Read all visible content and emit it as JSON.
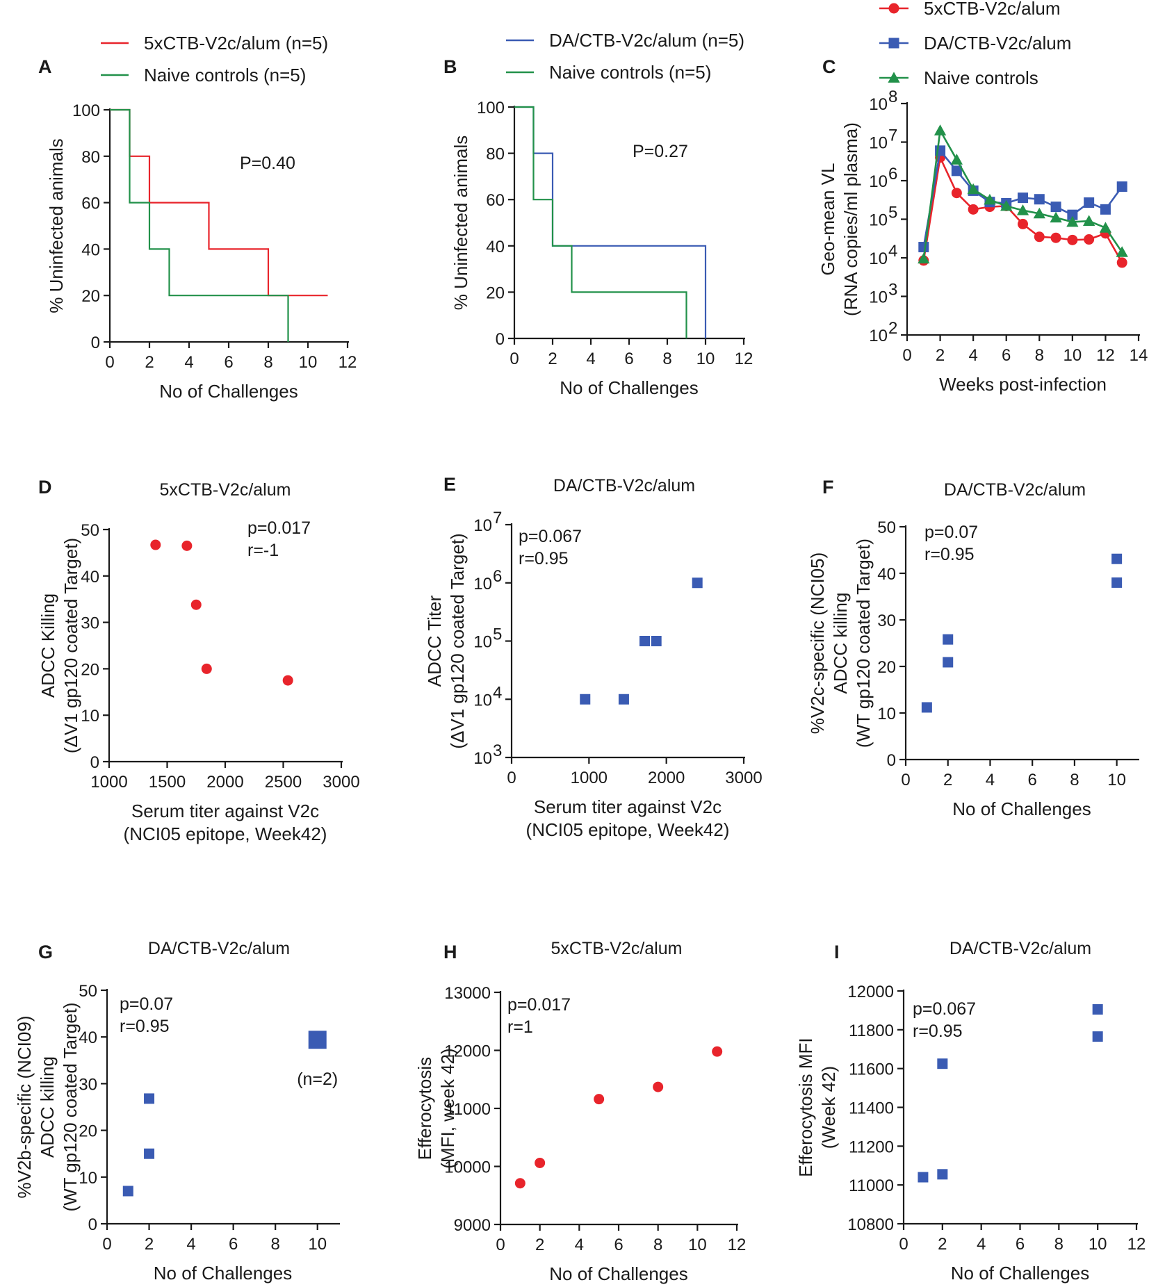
{
  "colors": {
    "red": "#e8242b",
    "blue": "#3a5bb3",
    "green": "#22914a",
    "axis": "#1a1a1a"
  },
  "chart_data": [
    {
      "id": "A",
      "type": "line",
      "style": "step",
      "title": "",
      "xlabel": "No of Challenges",
      "ylabel": "% Uninfected animals",
      "xlim": [
        0,
        12
      ],
      "ylim": [
        0,
        100
      ],
      "xticks": [
        0,
        2,
        4,
        6,
        8,
        10,
        12
      ],
      "yticks": [
        0,
        20,
        40,
        60,
        80,
        100
      ],
      "xtick_labels": [
        "0",
        "2",
        "4",
        "6",
        "8",
        "10",
        "12"
      ],
      "ytick_labels": [
        "0",
        "20",
        "40",
        "60",
        "80",
        "100"
      ],
      "annotation": "P=0.40",
      "legend": [
        "5xCTB-V2c/alum (n=5)",
        "Naive controls (n=5)"
      ],
      "series": [
        {
          "name": "5xCTB-V2c/alum (n=5)",
          "color": "red",
          "x": [
            0,
            1,
            1,
            2,
            2,
            5,
            5,
            8,
            8,
            11
          ],
          "y": [
            100,
            100,
            80,
            80,
            60,
            60,
            40,
            40,
            20,
            20
          ]
        },
        {
          "name": "Naive controls (n=5)",
          "color": "green",
          "x": [
            0,
            1,
            1,
            2,
            2,
            3,
            3,
            9,
            9
          ],
          "y": [
            100,
            100,
            60,
            60,
            40,
            40,
            20,
            20,
            0
          ]
        }
      ]
    },
    {
      "id": "B",
      "type": "line",
      "style": "step",
      "title": "",
      "xlabel": "No of Challenges",
      "ylabel": "% Uninfected animals",
      "xlim": [
        0,
        12
      ],
      "ylim": [
        0,
        100
      ],
      "xticks": [
        0,
        2,
        4,
        6,
        8,
        10,
        12
      ],
      "yticks": [
        0,
        20,
        40,
        60,
        80,
        100
      ],
      "xtick_labels": [
        "0",
        "2",
        "4",
        "6",
        "8",
        "10",
        "12"
      ],
      "ytick_labels": [
        "0",
        "20",
        "40",
        "60",
        "80",
        "100"
      ],
      "annotation": "P=0.27",
      "legend": [
        "DA/CTB-V2c/alum (n=5)",
        "Naive controls (n=5)"
      ],
      "series": [
        {
          "name": "DA/CTB-V2c/alum (n=5)",
          "color": "blue",
          "x": [
            0,
            1,
            1,
            2,
            2,
            10,
            10
          ],
          "y": [
            100,
            100,
            80,
            80,
            40,
            40,
            0
          ]
        },
        {
          "name": "Naive controls (n=5)",
          "color": "green",
          "x": [
            0,
            1,
            1,
            2,
            2,
            3,
            3,
            9,
            9
          ],
          "y": [
            100,
            100,
            60,
            60,
            40,
            40,
            20,
            20,
            0
          ]
        }
      ]
    },
    {
      "id": "C",
      "type": "line",
      "yscale": "log",
      "title": "",
      "xlabel": "Weeks post-infection",
      "ylabel": [
        "Geo-mean VL",
        "(RNA copies/ml plasma)"
      ],
      "xlim": [
        0,
        14
      ],
      "ylim": [
        100,
        100000000
      ],
      "xticks": [
        0,
        2,
        4,
        6,
        8,
        10,
        12,
        14
      ],
      "yticks": [
        100,
        1000,
        10000,
        100000,
        1000000,
        10000000,
        100000000
      ],
      "xtick_labels": [
        "0",
        "2",
        "4",
        "6",
        "8",
        "10",
        "12",
        "14"
      ],
      "ytick_labels": [
        "10",
        "10",
        "10",
        "10",
        "10",
        "10",
        "10"
      ],
      "ytick_exponents": [
        "2",
        "3",
        "4",
        "5",
        "6",
        "7",
        "8"
      ],
      "legend": [
        "5xCTB-V2c/alum",
        "DA/CTB-V2c/alum",
        "Naive controls"
      ],
      "series": [
        {
          "name": "5xCTB-V2c/alum",
          "color": "red",
          "marker": "circle",
          "x": [
            1,
            2,
            3,
            4,
            5,
            6,
            7,
            8,
            9,
            10,
            11,
            12,
            13
          ],
          "y": [
            8500,
            4000000,
            480000,
            180000,
            210000,
            220000,
            75000,
            35000,
            33000,
            29000,
            30000,
            43000,
            7500
          ]
        },
        {
          "name": "DA/CTB-V2c/alum",
          "color": "blue",
          "marker": "square",
          "x": [
            1,
            2,
            3,
            4,
            5,
            6,
            7,
            8,
            9,
            10,
            11,
            12,
            13
          ],
          "y": [
            19000,
            6000000,
            1800000,
            550000,
            280000,
            260000,
            360000,
            330000,
            210000,
            130000,
            270000,
            180000,
            700000
          ]
        },
        {
          "name": "Naive controls",
          "color": "green",
          "marker": "triangle",
          "x": [
            1,
            2,
            3,
            4,
            5,
            6,
            7,
            8,
            9,
            10,
            11,
            12,
            13
          ],
          "y": [
            9500,
            20000000,
            3500000,
            600000,
            320000,
            220000,
            170000,
            140000,
            110000,
            85000,
            90000,
            60000,
            14000
          ]
        }
      ]
    },
    {
      "id": "D",
      "type": "scatter",
      "title": "5xCTB-V2c/alum",
      "xlabel": [
        "Serum titer against V2c",
        "(NCI05 epitope, Week42)"
      ],
      "ylabel": [
        "ADCC Killing",
        "(ΔV1 gp120 coated Target)"
      ],
      "xlim": [
        1000,
        3000
      ],
      "ylim": [
        0,
        50
      ],
      "xticks": [
        1000,
        1500,
        2000,
        2500,
        3000
      ],
      "yticks": [
        0,
        10,
        20,
        30,
        40,
        50
      ],
      "xtick_labels": [
        "1000",
        "1500",
        "2000",
        "2500",
        "3000"
      ],
      "ytick_labels": [
        "0",
        "10",
        "20",
        "30",
        "40",
        "50"
      ],
      "annotation": [
        "p=0.017",
        "r=-1"
      ],
      "series": [
        {
          "name": "5xCTB-V2c/alum",
          "color": "red",
          "marker": "circle",
          "x": [
            1400,
            1670,
            1750,
            1840,
            2540
          ],
          "y": [
            46.7,
            46.5,
            33.8,
            20,
            17.5
          ]
        }
      ]
    },
    {
      "id": "E",
      "type": "scatter",
      "yscale": "log",
      "title": "DA/CTB-V2c/alum",
      "xlabel": [
        "Serum titer against V2c",
        "(NCI05 epitope, Week42)"
      ],
      "ylabel": [
        "ADCC Titer",
        "(ΔV1 gp120 coated Target)"
      ],
      "xlim": [
        0,
        3000
      ],
      "ylim": [
        1000,
        10000000
      ],
      "xticks": [
        0,
        1000,
        2000,
        3000
      ],
      "yticks": [
        1000,
        10000,
        100000,
        1000000,
        10000000
      ],
      "xtick_labels": [
        "0",
        "1000",
        "2000",
        "3000"
      ],
      "ytick_labels": [
        "10",
        "10",
        "10",
        "10",
        "10"
      ],
      "ytick_exponents": [
        "3",
        "4",
        "5",
        "6",
        "7"
      ],
      "annotation": [
        "p=0.067",
        "r=0.95"
      ],
      "series": [
        {
          "name": "DA/CTB-V2c/alum",
          "color": "blue",
          "marker": "square",
          "x": [
            950,
            1450,
            1720,
            1870,
            2400
          ],
          "y": [
            10000,
            10000,
            100000,
            100000,
            1000000
          ]
        }
      ]
    },
    {
      "id": "F",
      "type": "scatter",
      "title": "DA/CTB-V2c/alum",
      "xlabel": "No of Challenges",
      "ylabel": [
        "%V2c-specific (NCI05)",
        "ADCC killing",
        "(WT gp120 coated Target)"
      ],
      "xlim": [
        0,
        11
      ],
      "ylim": [
        0,
        50
      ],
      "xticks": [
        0,
        2,
        4,
        6,
        8,
        10
      ],
      "yticks": [
        0,
        10,
        20,
        30,
        40,
        50
      ],
      "xtick_labels": [
        "0",
        "2",
        "4",
        "6",
        "8",
        "10"
      ],
      "ytick_labels": [
        "0",
        "10",
        "20",
        "30",
        "40",
        "50"
      ],
      "annotation": [
        "p=0.07",
        "r=0.95"
      ],
      "series": [
        {
          "name": "DA/CTB-V2c/alum",
          "color": "blue",
          "marker": "square",
          "x": [
            1,
            2,
            2,
            10,
            10
          ],
          "y": [
            11.2,
            25.8,
            20.9,
            43.1,
            38
          ]
        }
      ]
    },
    {
      "id": "G",
      "type": "scatter",
      "title": "DA/CTB-V2c/alum",
      "xlabel": "No of Challenges",
      "ylabel": [
        "%V2b-specific (NCI09)",
        "ADCC killing",
        "(WT gp120 coated Target)"
      ],
      "xlim": [
        0,
        11
      ],
      "ylim": [
        0,
        50
      ],
      "xticks": [
        0,
        2,
        4,
        6,
        8,
        10
      ],
      "yticks": [
        0,
        10,
        20,
        30,
        40,
        50
      ],
      "xtick_labels": [
        "0",
        "2",
        "4",
        "6",
        "8",
        "10"
      ],
      "ytick_labels": [
        "0",
        "10",
        "20",
        "30",
        "40",
        "50"
      ],
      "annotation": [
        "p=0.07",
        "r=0.95"
      ],
      "point_note": "(n=2)",
      "series": [
        {
          "name": "DA/CTB-V2c/alum",
          "color": "blue",
          "marker": "square",
          "x": [
            1,
            2,
            2,
            10
          ],
          "y": [
            7,
            26.8,
            15,
            39.4
          ],
          "big": [
            false,
            false,
            false,
            true
          ]
        }
      ]
    },
    {
      "id": "H",
      "type": "scatter",
      "title": "5xCTB-V2c/alum",
      "xlabel": "No of Challenges",
      "ylabel": [
        "Efferocytosis",
        "(MFI, week 42)"
      ],
      "xlim": [
        0,
        12
      ],
      "ylim": [
        9000,
        13000
      ],
      "xticks": [
        0,
        2,
        4,
        6,
        8,
        10,
        12
      ],
      "yticks": [
        9000,
        10000,
        11000,
        12000,
        13000
      ],
      "xtick_labels": [
        "0",
        "2",
        "4",
        "6",
        "8",
        "10",
        "12"
      ],
      "ytick_labels": [
        "9000",
        "10000",
        "11000",
        "12000",
        "13000"
      ],
      "annotation": [
        "p=0.017",
        "r=1"
      ],
      "series": [
        {
          "name": "5xCTB-V2c/alum",
          "color": "red",
          "marker": "circle",
          "x": [
            1,
            2,
            5,
            8,
            11
          ],
          "y": [
            9710,
            10060,
            11160,
            11370,
            11980
          ]
        }
      ]
    },
    {
      "id": "I",
      "type": "scatter",
      "title": "DA/CTB-V2c/alum",
      "xlabel": "No of Challenges",
      "ylabel": [
        "Efferocytosis MFI",
        "(Week 42)"
      ],
      "xlim": [
        0,
        12
      ],
      "ylim": [
        10800,
        12000
      ],
      "xticks": [
        0,
        2,
        4,
        6,
        8,
        10,
        12
      ],
      "yticks": [
        10800,
        11000,
        11200,
        11400,
        11600,
        11800,
        12000
      ],
      "xtick_labels": [
        "0",
        "2",
        "4",
        "6",
        "8",
        "10",
        "12"
      ],
      "ytick_labels": [
        "10800",
        "11000",
        "11200",
        "11400",
        "11600",
        "11800",
        "12000"
      ],
      "annotation": [
        "p=0.067",
        "r=0.95"
      ],
      "series": [
        {
          "name": "DA/CTB-V2c/alum",
          "color": "blue",
          "marker": "square",
          "x": [
            1,
            2,
            2,
            10,
            10
          ],
          "y": [
            11040,
            11055,
            11625,
            11905,
            11765
          ]
        }
      ]
    }
  ]
}
